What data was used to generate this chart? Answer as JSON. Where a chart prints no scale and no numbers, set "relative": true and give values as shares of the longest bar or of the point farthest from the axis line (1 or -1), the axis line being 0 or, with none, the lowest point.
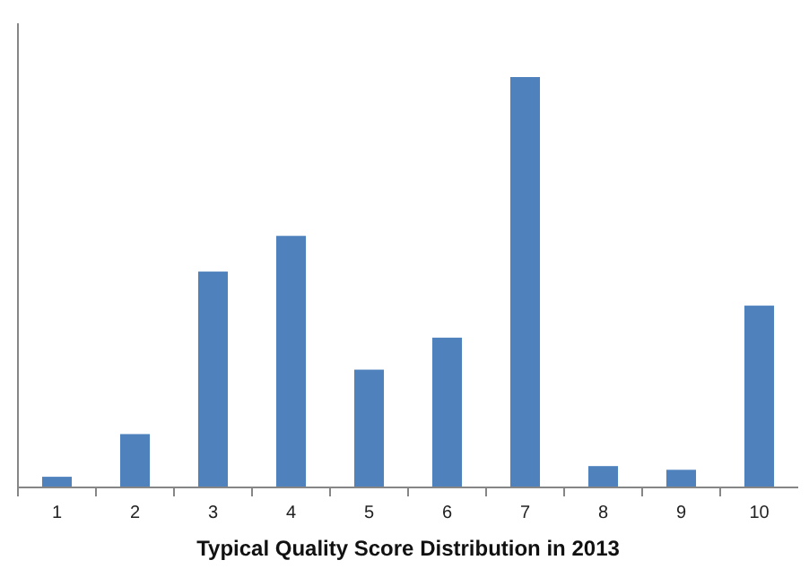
{
  "chart_data": {
    "type": "bar",
    "relative": true,
    "xlabel": "Typical Quality Score Distribution in 2013",
    "categories": [
      "1",
      "2",
      "3",
      "4",
      "5",
      "6",
      "7",
      "8",
      "9",
      "10"
    ],
    "values": [
      0.026,
      0.13,
      0.526,
      0.613,
      0.287,
      0.365,
      1,
      0.052,
      0.043,
      0.443
    ],
    "color": "#4f81bd"
  }
}
